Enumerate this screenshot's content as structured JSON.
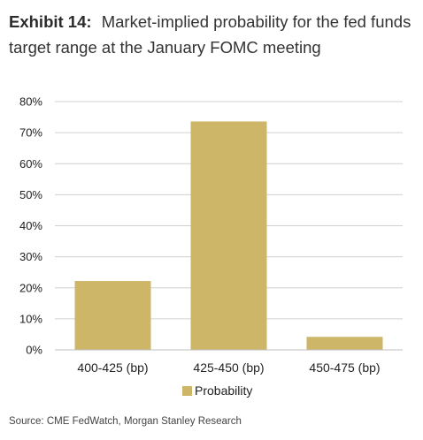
{
  "header": {
    "exhibit": "Exhibit 14:",
    "title": "Market-implied probability for the fed funds target range at the January FOMC meeting"
  },
  "source": "Source: CME FedWatch, Morgan Stanley Research",
  "colors": {
    "bar": "#cdb668",
    "grid": "#d0d0d0",
    "axis": "#bfbfbf",
    "text": "#222222"
  },
  "chart_data": {
    "type": "bar",
    "categories": [
      "400-425 (bp)",
      "425-450 (bp)",
      "450-475 (bp)"
    ],
    "series": [
      {
        "name": "Probability",
        "values": [
          22.2,
          73.6,
          4.2
        ]
      }
    ],
    "ylim": [
      0,
      80
    ],
    "yticks": [
      0,
      10,
      20,
      30,
      40,
      50,
      60,
      70,
      80
    ],
    "ytick_labels": [
      "0%",
      "10%",
      "20%",
      "30%",
      "40%",
      "50%",
      "60%",
      "70%",
      "80%"
    ],
    "grid": true,
    "legend_position": "bottom-center"
  }
}
